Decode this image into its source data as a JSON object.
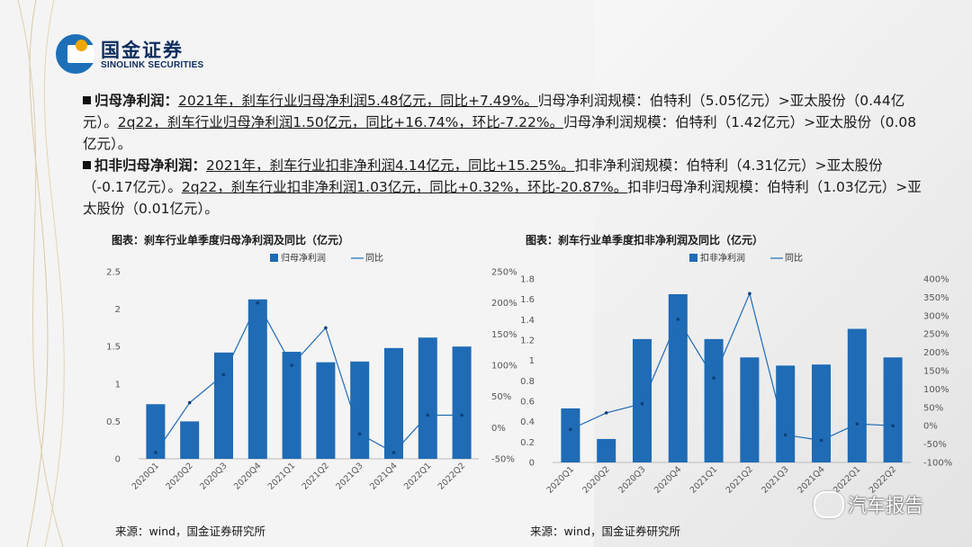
{
  "brand": {
    "name_cn": "国金证券",
    "name_en": "SINOLINK SECURITIES"
  },
  "bullets": [
    {
      "label": "归母净利润：",
      "u1": "2021年，刹车行业归母净利润5.48亿元，同比+7.49%。",
      "t1": "归母净利润规模：伯特利（5.05亿元）>亚太股份（0.44亿元）。",
      "u2": "2q22，刹车行业归母净利润1.50亿元，同比+16.74%，环比-7.22%。",
      "t2": "归母净利润规模：伯特利（1.42亿元）>亚太股份（0.08亿元）。"
    },
    {
      "label": "扣非归母净利润：",
      "u1": "2021年，刹车行业扣非净利润4.14亿元，同比+15.25%。",
      "t1": "扣非净利润规模：伯特利（4.31亿元）>亚太股份（-0.17亿元）。",
      "u2": "2q22，刹车行业扣非净利润1.03亿元，同比+0.32%，环比-20.87%。",
      "t2": "扣非归母净利润规模：伯特利（1.03亿元）>亚太股份（0.01亿元）。"
    }
  ],
  "charts": [
    {
      "title": "图表：刹车行业单季度归母净利润及同比（亿元）",
      "source": "来源：wind，国金证券研究所"
    },
    {
      "title": "图表：刹车行业单季度扣非净利润及同比（亿元）",
      "source": "来源：wind，国金证券研究所"
    }
  ],
  "chart_data": [
    {
      "type": "bar",
      "title": "图表：刹车行业单季度归母净利润及同比（亿元）",
      "categories": [
        "2020Q1",
        "2020Q2",
        "2020Q3",
        "2020Q4",
        "2021Q1",
        "2021Q2",
        "2021Q3",
        "2021Q4",
        "2022Q1",
        "2022Q2"
      ],
      "series": [
        {
          "name": "归母净利润",
          "type": "bar",
          "axis": "left",
          "color": "#1f6bb5",
          "values": [
            0.73,
            0.5,
            1.42,
            2.13,
            1.43,
            1.29,
            1.3,
            1.48,
            1.62,
            1.5
          ]
        },
        {
          "name": "同比",
          "type": "line",
          "axis": "right",
          "color": "#1f6bb5",
          "values": [
            -40,
            40,
            85,
            200,
            100,
            160,
            -10,
            -40,
            20,
            20
          ]
        }
      ],
      "ylim": [
        0,
        2.5
      ],
      "yticks": [
        "0",
        "0.5",
        "1",
        "1.5",
        "2",
        "2.5"
      ],
      "y2lim": [
        -50,
        250
      ],
      "y2ticks": [
        "-50%",
        "0%",
        "50%",
        "100%",
        "150%",
        "200%",
        "250%"
      ],
      "legend": "top"
    },
    {
      "type": "bar",
      "title": "图表：刹车行业单季度扣非净利润及同比（亿元）",
      "categories": [
        "2020Q1",
        "2020Q2",
        "2020Q3",
        "2020Q4",
        "2021Q1",
        "2021Q2",
        "2021Q3",
        "2021Q4",
        "2022Q1",
        "2022Q2"
      ],
      "series": [
        {
          "name": "扣非净利润",
          "type": "bar",
          "axis": "left",
          "color": "#1f6bb5",
          "values": [
            0.53,
            0.23,
            1.21,
            1.65,
            1.21,
            1.03,
            0.95,
            0.96,
            1.31,
            1.03
          ]
        },
        {
          "name": "同比",
          "type": "line",
          "axis": "right",
          "color": "#1f6bb5",
          "values": [
            -10,
            35,
            60,
            290,
            130,
            360,
            -25,
            -40,
            5,
            0
          ]
        }
      ],
      "ylim": [
        0,
        1.8
      ],
      "yticks": [
        "0",
        "0.2",
        "0.4",
        "0.6",
        "0.8",
        "1",
        "1.2",
        "1.4",
        "1.6",
        "1.8"
      ],
      "y2lim": [
        -100,
        400
      ],
      "y2ticks": [
        "-100%",
        "-50%",
        "0%",
        "50%",
        "100%",
        "150%",
        "200%",
        "250%",
        "300%",
        "350%",
        "400%"
      ],
      "legend": "top"
    }
  ],
  "watermark": {
    "text": "汽车报告"
  }
}
